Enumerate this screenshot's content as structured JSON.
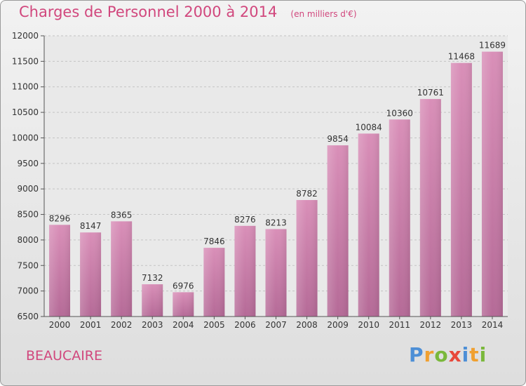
{
  "chart_data": {
    "type": "bar",
    "title": "Charges de Personnel 2000 à 2014",
    "subtitle": "(en milliers d'€)",
    "categories": [
      "2000",
      "2001",
      "2002",
      "2003",
      "2004",
      "2005",
      "2006",
      "2007",
      "2008",
      "2009",
      "2010",
      "2011",
      "2012",
      "2013",
      "2014"
    ],
    "values": [
      8296,
      8147,
      8365,
      7132,
      6976,
      7846,
      8276,
      8213,
      8782,
      9854,
      10084,
      10360,
      10761,
      11468,
      11689
    ],
    "ylim": [
      6500,
      12000
    ],
    "yticks": [
      6500,
      7000,
      7500,
      8000,
      8500,
      9000,
      9500,
      10000,
      10500,
      11000,
      11500,
      12000
    ],
    "grid": "horizontal-dashed",
    "bar_color": "#d98fb8",
    "bar_color_dark": "#b56a97",
    "title_color": "#d1477d"
  },
  "footer": {
    "city": "BEAUCAIRE",
    "brand_letters": [
      {
        "ch": "P",
        "color": "#4d8fd6"
      },
      {
        "ch": "r",
        "color": "#f0a030"
      },
      {
        "ch": "o",
        "color": "#7ab83b"
      },
      {
        "ch": "x",
        "color": "#e8473a"
      },
      {
        "ch": "i",
        "color": "#4d8fd6"
      },
      {
        "ch": "t",
        "color": "#f0a030"
      },
      {
        "ch": "i",
        "color": "#7ab83b"
      }
    ]
  }
}
